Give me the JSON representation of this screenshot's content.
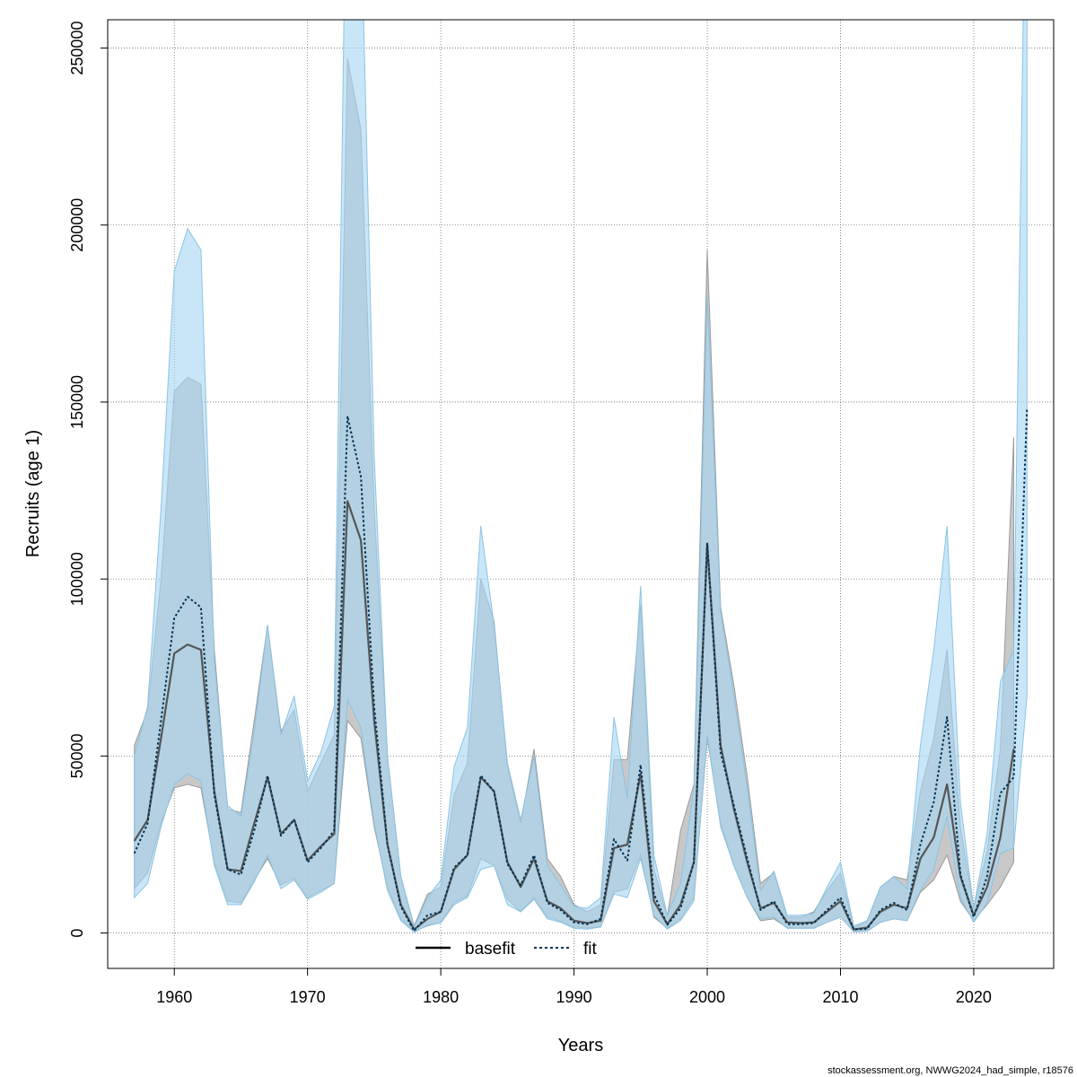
{
  "chart_data": {
    "type": "area",
    "xlabel": "Years",
    "ylabel": "Recruits (age 1)",
    "xlim": [
      1955,
      2026
    ],
    "ylim": [
      -10000,
      258000
    ],
    "x_ticks": [
      1960,
      1970,
      1980,
      1990,
      2000,
      2010,
      2020
    ],
    "y_ticks": [
      0,
      50000,
      100000,
      150000,
      200000,
      250000
    ],
    "grid": true,
    "legend_position": "bottom-center",
    "credit": "stockassessment.org, NWWG2024_had_simple, r18576",
    "colors": {
      "basefit_line": "#555555",
      "basefit_band": "#bebebe",
      "fit_line": "#003355",
      "fit_band": "#a6d6f2"
    },
    "x": [
      1957,
      1958,
      1959,
      1960,
      1961,
      1962,
      1963,
      1964,
      1965,
      1966,
      1967,
      1968,
      1969,
      1970,
      1971,
      1972,
      1973,
      1974,
      1975,
      1976,
      1977,
      1978,
      1979,
      1980,
      1981,
      1982,
      1983,
      1984,
      1985,
      1986,
      1987,
      1988,
      1989,
      1990,
      1991,
      1992,
      1993,
      1994,
      1995,
      1996,
      1997,
      1998,
      1999,
      2000,
      2001,
      2002,
      2003,
      2004,
      2005,
      2006,
      2007,
      2008,
      2009,
      2010,
      2011,
      2012,
      2013,
      2014,
      2015,
      2016,
      2017,
      2018,
      2019,
      2020,
      2021,
      2022,
      2023,
      2024
    ],
    "series": [
      {
        "name": "basefit",
        "style": "solid",
        "values": [
          26000,
          32000,
          55000,
          79000,
          81500,
          80000,
          40000,
          18000,
          17500,
          31000,
          44000,
          28000,
          32000,
          20500,
          24500,
          28000,
          122000,
          111000,
          60000,
          25000,
          8000,
          1000,
          4000,
          6000,
          18000,
          22000,
          44000,
          40000,
          20000,
          13000,
          21000,
          9000,
          7000,
          3500,
          2800,
          3500,
          24000,
          25000,
          45000,
          9000,
          2500,
          8000,
          20000,
          110000,
          53000,
          35000,
          20000,
          7000,
          8500,
          3000,
          2800,
          3000,
          6000,
          9000,
          1000,
          1500,
          6000,
          8000,
          7000,
          21000,
          27000,
          42000,
          16000,
          5000,
          13000,
          27000,
          52000,
          null
        ],
        "lower": [
          12500,
          17000,
          31000,
          41000,
          42000,
          41000,
          20000,
          9000,
          8500,
          15000,
          21000,
          13500,
          15500,
          10000,
          12000,
          14000,
          60000,
          55000,
          30000,
          13000,
          4000,
          500,
          2000,
          3000,
          8500,
          10500,
          21000,
          19000,
          9500,
          6000,
          10000,
          4500,
          3300,
          1700,
          1400,
          1700,
          11500,
          12500,
          22000,
          4500,
          1300,
          4000,
          10000,
          55000,
          31000,
          19000,
          10000,
          3500,
          4000,
          1500,
          1400,
          1500,
          3000,
          4500,
          500,
          700,
          3000,
          4000,
          3500,
          11500,
          15000,
          22000,
          9000,
          3500,
          8000,
          13000,
          20000,
          null
        ],
        "upper": [
          53000,
          63000,
          100000,
          153000,
          157000,
          155000,
          80000,
          35000,
          34000,
          60000,
          87000,
          57000,
          63000,
          40000,
          48000,
          56000,
          247000,
          227000,
          120000,
          50000,
          16000,
          2000,
          11000,
          13000,
          39000,
          48000,
          100000,
          88000,
          47000,
          31000,
          52000,
          21000,
          16000,
          8000,
          6000,
          8000,
          49000,
          49000,
          93000,
          18000,
          4600,
          29000,
          42000,
          193000,
          92000,
          70000,
          44000,
          14000,
          17000,
          4500,
          4500,
          6000,
          12000,
          17000,
          1500,
          3500,
          13000,
          16000,
          15000,
          40000,
          55000,
          80000,
          30000,
          7000,
          23000,
          52000,
          140000,
          null
        ]
      },
      {
        "name": "fit",
        "style": "dotted",
        "values": [
          22500,
          31000,
          60000,
          89000,
          95000,
          92000,
          39000,
          18000,
          16500,
          29000,
          44500,
          27500,
          32000,
          20000,
          24000,
          29000,
          146000,
          129000,
          64000,
          25000,
          7500,
          600,
          5000,
          6000,
          18500,
          22000,
          44500,
          40000,
          19500,
          13500,
          22000,
          8500,
          6500,
          3000,
          2500,
          4000,
          26500,
          20500,
          47500,
          11000,
          2300,
          7000,
          20000,
          110000,
          51000,
          36000,
          21000,
          6500,
          9000,
          2500,
          2500,
          2800,
          6500,
          10000,
          1000,
          1200,
          6500,
          8500,
          6500,
          25000,
          37000,
          61000,
          16500,
          4500,
          16000,
          39500,
          44000,
          148000
        ],
        "lower": [
          10000,
          14000,
          30000,
          42000,
          45000,
          43000,
          19000,
          8000,
          8000,
          14500,
          22000,
          12500,
          15000,
          9500,
          11500,
          14000,
          66000,
          58000,
          31000,
          12000,
          3500,
          200,
          2200,
          2800,
          8000,
          10000,
          18000,
          19000,
          8000,
          6000,
          9500,
          4000,
          3000,
          1300,
          1100,
          1700,
          11000,
          10000,
          21000,
          5000,
          1100,
          3500,
          9000,
          56000,
          30000,
          19000,
          10000,
          4000,
          4500,
          1300,
          1300,
          1300,
          3000,
          4500,
          300,
          500,
          3000,
          4000,
          3500,
          12000,
          18000,
          33000,
          10000,
          3000,
          8500,
          22500,
          24000,
          67000
        ],
        "upper": [
          50000,
          64000,
          120000,
          187000,
          199000,
          193000,
          77000,
          36000,
          33000,
          57000,
          87000,
          56000,
          67000,
          43000,
          51000,
          64000,
          330000,
          290000,
          135000,
          50000,
          16000,
          1700,
          10000,
          15000,
          47000,
          58000,
          115000,
          87000,
          48000,
          32000,
          50000,
          19000,
          13500,
          7500,
          7000,
          10000,
          61000,
          38000,
          98000,
          22000,
          5000,
          14000,
          41000,
          180000,
          91000,
          67000,
          41000,
          12000,
          17500,
          5000,
          5000,
          5500,
          13000,
          20000,
          2000,
          3500,
          13000,
          16000,
          12500,
          53000,
          80000,
          115000,
          37000,
          7000,
          28000,
          71000,
          80000,
          330000
        ]
      }
    ]
  }
}
